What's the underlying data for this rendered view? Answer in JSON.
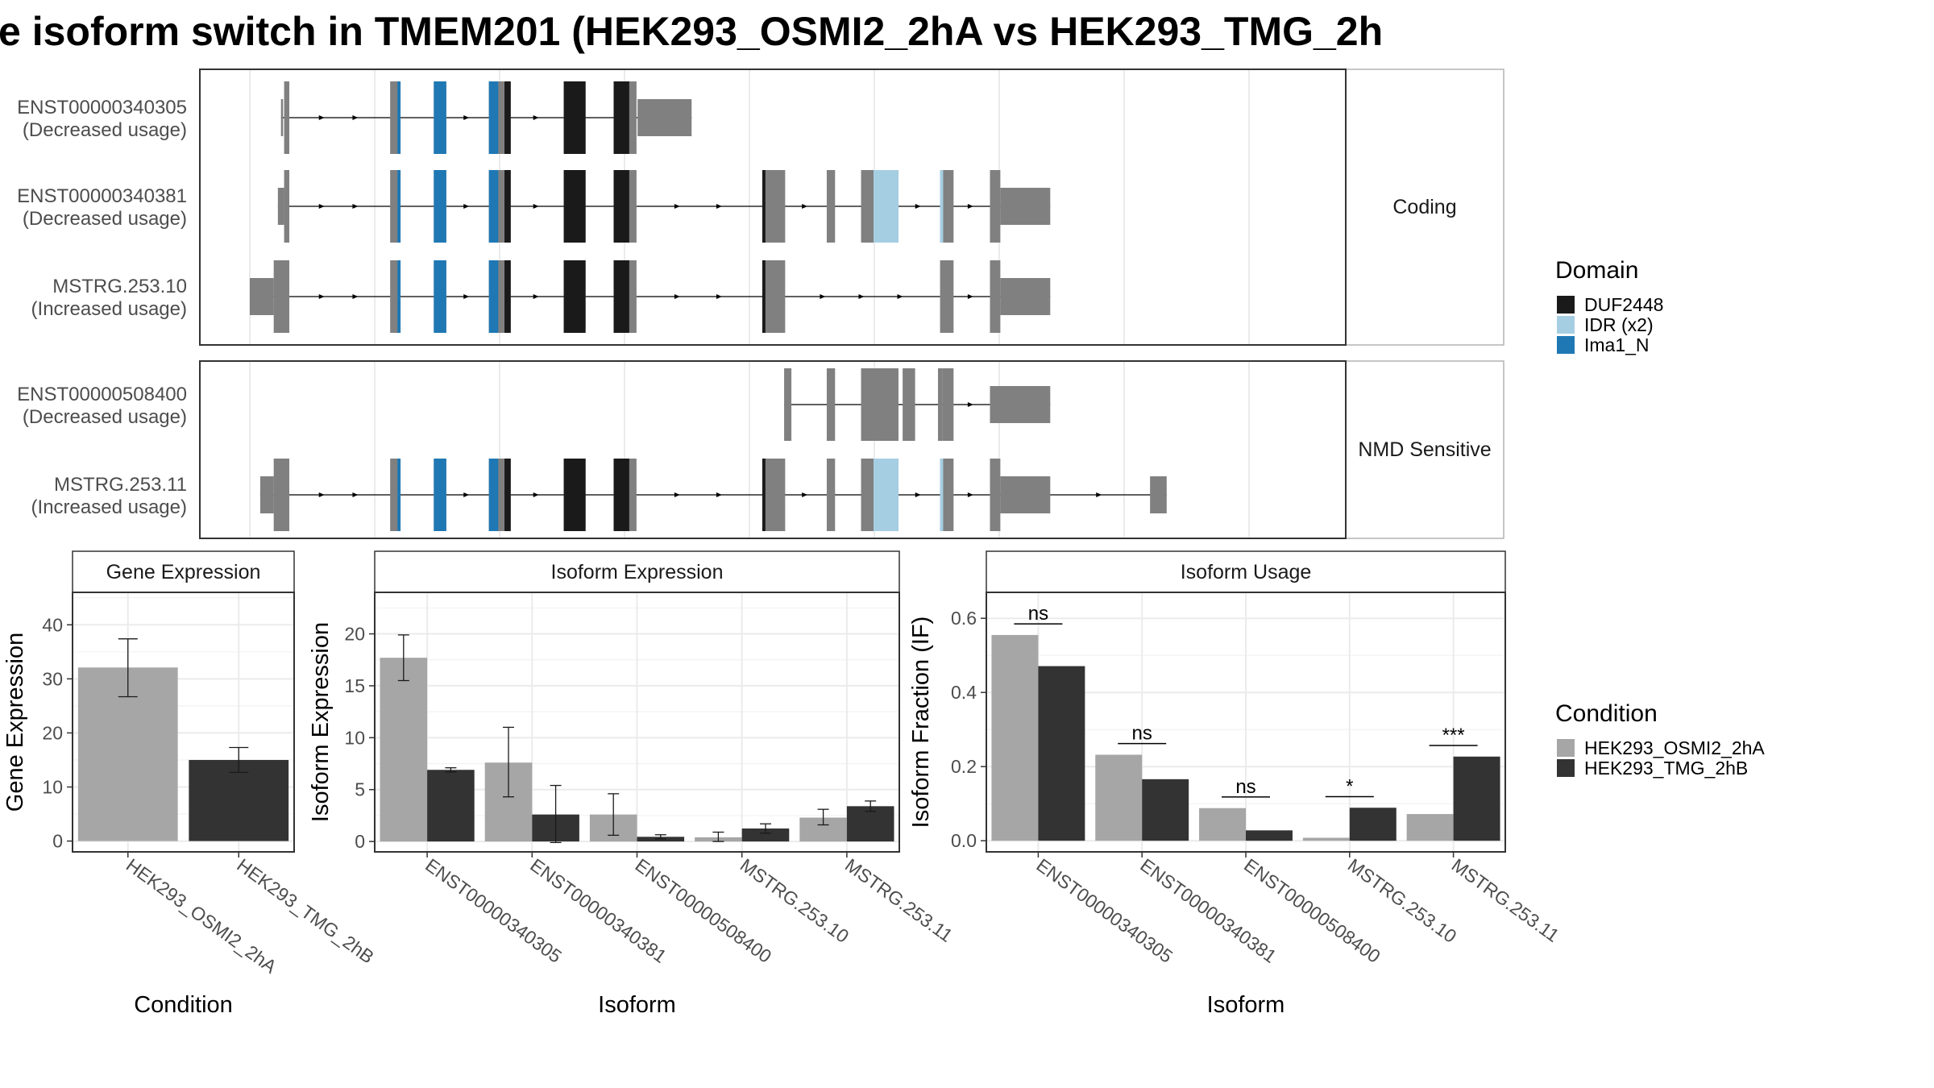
{
  "title": "e isoform switch in TMEM201 (HEK293_OSMI2_2hA vs HEK293_TMG_2h",
  "colors": {
    "exon": "#808080",
    "DUF2448": "#1a1a1a",
    "IDR": "#a6cee3",
    "Ima1_N": "#1f78b4",
    "cond_a": "#a6a6a6",
    "cond_b": "#333333"
  },
  "domain_legend": {
    "title": "Domain",
    "items": [
      {
        "label": "DUF2448",
        "color": "#1a1a1a"
      },
      {
        "label": "IDR (x2)",
        "color": "#a6cee3"
      },
      {
        "label": "Ima1_N",
        "color": "#1f78b4"
      }
    ]
  },
  "condition_legend": {
    "title": "Condition",
    "items": [
      {
        "label": "HEK293_OSMI2_2hA",
        "color": "#a6a6a6"
      },
      {
        "label": "HEK293_TMG_2hB",
        "color": "#333333"
      }
    ]
  },
  "structure_panels": [
    {
      "strip": "Coding",
      "isoforms": [
        {
          "id": "ENST00000340305",
          "usage": "(Decreased usage)",
          "exons": [
            [
              30,
              32,
              "utr"
            ],
            [
              33,
              38,
              "cds"
            ],
            [
              135,
              145,
              "cds"
            ],
            [
              177,
              189,
              "cds"
            ],
            [
              230,
              251,
              "cds"
            ],
            [
              302,
              323,
              "cds"
            ],
            [
              350,
              372,
              "cds"
            ],
            [
              373,
              425,
              "utr"
            ]
          ],
          "domains": [
            [
              142,
              145,
              "Ima1_N"
            ],
            [
              177,
              189,
              "Ima1_N"
            ],
            [
              230,
              239,
              "Ima1_N"
            ],
            [
              245,
              251,
              "DUF2448"
            ],
            [
              302,
              323,
              "DUF2448"
            ],
            [
              350,
              365,
              "DUF2448"
            ]
          ]
        },
        {
          "id": "ENST00000340381",
          "usage": "(Decreased usage)",
          "exons": [
            [
              27,
              33,
              "utr"
            ],
            [
              33,
              38,
              "cds"
            ],
            [
              135,
              145,
              "cds"
            ],
            [
              177,
              189,
              "cds"
            ],
            [
              230,
              251,
              "cds"
            ],
            [
              302,
              323,
              "cds"
            ],
            [
              350,
              372,
              "cds"
            ],
            [
              493,
              515,
              "cds"
            ],
            [
              555,
              563,
              "cds"
            ],
            [
              588,
              624,
              "cds"
            ],
            [
              664,
              677,
              "cds"
            ],
            [
              712,
              722,
              "cds"
            ],
            [
              722,
              770,
              "utr"
            ]
          ],
          "domains": [
            [
              142,
              145,
              "Ima1_N"
            ],
            [
              177,
              189,
              "Ima1_N"
            ],
            [
              230,
              239,
              "Ima1_N"
            ],
            [
              245,
              251,
              "DUF2448"
            ],
            [
              302,
              323,
              "DUF2448"
            ],
            [
              350,
              365,
              "DUF2448"
            ],
            [
              493,
              496,
              "DUF2448"
            ],
            [
              600,
              624,
              "IDR"
            ],
            [
              664,
              667,
              "IDR"
            ]
          ]
        },
        {
          "id": "MSTRG.253.10",
          "usage": "(Increased usage)",
          "exons": [
            [
              0,
              23,
              "utr"
            ],
            [
              23,
              38,
              "cds"
            ],
            [
              135,
              145,
              "cds"
            ],
            [
              177,
              189,
              "cds"
            ],
            [
              230,
              251,
              "cds"
            ],
            [
              302,
              323,
              "cds"
            ],
            [
              350,
              372,
              "cds"
            ],
            [
              493,
              515,
              "cds"
            ],
            [
              664,
              677,
              "cds"
            ],
            [
              712,
              722,
              "cds"
            ],
            [
              722,
              770,
              "utr"
            ]
          ],
          "domains": [
            [
              142,
              145,
              "Ima1_N"
            ],
            [
              177,
              189,
              "Ima1_N"
            ],
            [
              230,
              239,
              "Ima1_N"
            ],
            [
              245,
              251,
              "DUF2448"
            ],
            [
              302,
              323,
              "DUF2448"
            ],
            [
              350,
              365,
              "DUF2448"
            ],
            [
              493,
              496,
              "DUF2448"
            ]
          ]
        }
      ]
    },
    {
      "strip": "NMD Sensitive",
      "isoforms": [
        {
          "id": "ENST00000508400",
          "usage": "(Decreased usage)",
          "exons": [
            [
              514,
              521,
              "cds"
            ],
            [
              555,
              563,
              "cds"
            ],
            [
              588,
              624,
              "cds"
            ],
            [
              628,
              640,
              "cds"
            ],
            [
              662,
              666,
              "cds"
            ],
            [
              666,
              677,
              "cds"
            ],
            [
              712,
              770,
              "utr"
            ]
          ],
          "domains": []
        },
        {
          "id": "MSTRG.253.11",
          "usage": "(Increased usage)",
          "exons": [
            [
              10,
              23,
              "utr"
            ],
            [
              23,
              38,
              "cds"
            ],
            [
              135,
              145,
              "cds"
            ],
            [
              177,
              189,
              "cds"
            ],
            [
              230,
              251,
              "cds"
            ],
            [
              302,
              323,
              "cds"
            ],
            [
              350,
              372,
              "cds"
            ],
            [
              493,
              515,
              "cds"
            ],
            [
              555,
              563,
              "cds"
            ],
            [
              588,
              624,
              "cds"
            ],
            [
              664,
              677,
              "cds"
            ],
            [
              712,
              722,
              "cds"
            ],
            [
              722,
              770,
              "utr"
            ],
            [
              866,
              882,
              "utr"
            ]
          ],
          "domains": [
            [
              142,
              145,
              "Ima1_N"
            ],
            [
              177,
              189,
              "Ima1_N"
            ],
            [
              230,
              239,
              "Ima1_N"
            ],
            [
              245,
              251,
              "DUF2448"
            ],
            [
              302,
              323,
              "DUF2448"
            ],
            [
              350,
              365,
              "DUF2448"
            ],
            [
              493,
              496,
              "DUF2448"
            ],
            [
              600,
              624,
              "IDR"
            ],
            [
              664,
              667,
              "IDR"
            ]
          ]
        }
      ]
    }
  ],
  "chart_data": [
    {
      "type": "bar",
      "title": "Gene Expression",
      "xlabel": "Condition",
      "ylabel": "Gene Expression",
      "ylim": [
        -2,
        46
      ],
      "yticks": [
        0,
        10,
        20,
        30,
        40
      ],
      "categories": [
        "HEK293_OSMI2_2hA",
        "HEK293_TMG_2hB"
      ],
      "values": [
        32.1,
        15.0
      ],
      "error": [
        [
          26.7,
          37.4
        ],
        [
          12.7,
          17.3
        ]
      ],
      "grid": true
    },
    {
      "type": "bar",
      "title": "Isoform Expression",
      "xlabel": "Isoform",
      "ylabel": "Isoform Expression",
      "ylim": [
        -1,
        24
      ],
      "yticks": [
        0,
        5,
        10,
        15,
        20
      ],
      "categories": [
        "ENST00000340305",
        "ENST00000340381",
        "ENST00000508400",
        "MSTRG.253.10",
        "MSTRG.253.11"
      ],
      "series": [
        {
          "name": "HEK293_OSMI2_2hA",
          "values": [
            17.7,
            7.6,
            2.6,
            0.4,
            2.3
          ],
          "error": [
            [
              15.5,
              19.9
            ],
            [
              4.3,
              11.0
            ],
            [
              0.6,
              4.6
            ],
            [
              0.0,
              0.9
            ],
            [
              1.6,
              3.1
            ]
          ]
        },
        {
          "name": "HEK293_TMG_2hB",
          "values": [
            6.9,
            2.6,
            0.45,
            1.25,
            3.4
          ],
          "error": [
            [
              6.7,
              7.1
            ],
            [
              -0.1,
              5.4
            ],
            [
              0.25,
              0.65
            ],
            [
              0.8,
              1.7
            ],
            [
              2.9,
              3.9
            ]
          ]
        }
      ],
      "grid": true
    },
    {
      "type": "bar",
      "title": "Isoform Usage",
      "xlabel": "Isoform",
      "ylabel": "Isoform Fraction (IF)",
      "ylim": [
        -0.03,
        0.67
      ],
      "yticks": [
        0.0,
        0.2,
        0.4,
        0.6
      ],
      "ytick_labels": [
        "0.0",
        "0.2",
        "0.4",
        "0.6"
      ],
      "categories": [
        "ENST00000340305",
        "ENST00000340381",
        "ENST00000508400",
        "MSTRG.253.10",
        "MSTRG.253.11"
      ],
      "series": [
        {
          "name": "HEK293_OSMI2_2hA",
          "values": [
            0.555,
            0.232,
            0.088,
            0.008,
            0.072
          ]
        },
        {
          "name": "HEK293_TMG_2hB",
          "values": [
            0.471,
            0.166,
            0.028,
            0.089,
            0.227
          ]
        }
      ],
      "significance": [
        {
          "label": "ns",
          "y": 0.585
        },
        {
          "label": "ns",
          "y": 0.262
        },
        {
          "label": "ns",
          "y": 0.118
        },
        {
          "label": "*",
          "y": 0.119
        },
        {
          "label": "***",
          "y": 0.257
        }
      ],
      "grid": true
    }
  ]
}
